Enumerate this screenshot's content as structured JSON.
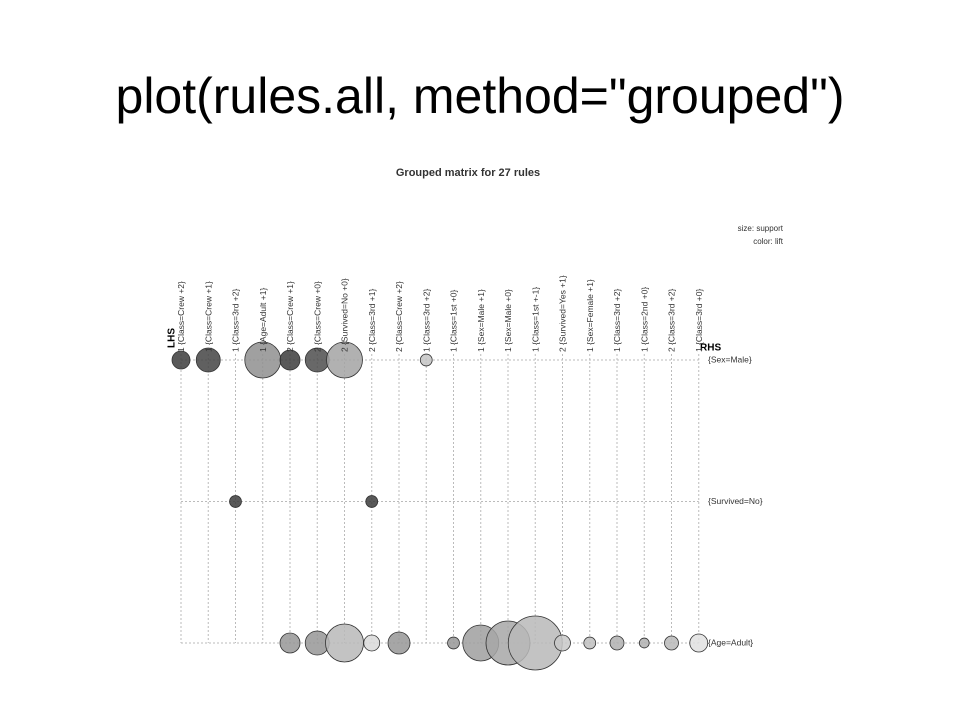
{
  "slide_title": "plot(rules.all, method=\"grouped\")",
  "chart_data": {
    "type": "grouped-matrix",
    "title": "Grouped matrix for 27 rules",
    "size_legend": "size: support",
    "color_legend": "color: lift",
    "lhs_label": "LHS",
    "rhs_label": "RHS",
    "columns": [
      "1 {Class=Crew +2}",
      "1 {Class=Crew +1}",
      "1 {Class=3rd +2}",
      "1 {Age=Adult +1}",
      "2 {Class=Crew +1}",
      "2 {Class=Crew +0}",
      "2 {Survived=No +0}",
      "2 {Class=3rd +1}",
      "2 {Class=Crew +2}",
      "1 {Class=3rd +2}",
      "1 {Class=1st +0}",
      "1 {Sex=Male +1}",
      "1 {Sex=Male +0}",
      "1 {Class=1st +-1}",
      "2 {Survived=Yes +1}",
      "1 {Sex=Female +1}",
      "1 {Class=3rd +2}",
      "1 {Class=2nd +0}",
      "2 {Class=3rd +2}",
      "1 {Class=3rd +0}"
    ],
    "series": [
      {
        "name": "{Sex=Male}",
        "support": [
          0.066,
          0.118,
          null,
          0.264,
          0.082,
          0.118,
          0.264,
          null,
          null,
          0.029,
          null,
          null,
          null,
          null,
          null,
          null,
          null,
          null,
          null,
          null
        ],
        "lift": [
          1.3,
          1.28,
          null,
          1.1,
          1.3,
          1.26,
          1.05,
          null,
          null,
          0.97,
          null,
          null,
          null,
          null,
          null,
          null,
          null,
          null,
          null,
          null
        ]
      },
      {
        "name": "{Survived=No}",
        "support": [
          null,
          null,
          0.029,
          null,
          null,
          null,
          null,
          0.029,
          null,
          null,
          null,
          null,
          null,
          null,
          null,
          null,
          null,
          null,
          null,
          null
        ],
        "lift": [
          null,
          null,
          1.3,
          null,
          null,
          null,
          null,
          1.3,
          null,
          null,
          null,
          null,
          null,
          null,
          null,
          null,
          null,
          null,
          null,
          null
        ]
      },
      {
        "name": "{Age=Adult}",
        "support": [
          null,
          null,
          null,
          null,
          0.082,
          0.118,
          0.295,
          0.052,
          0.099,
          null,
          0.029,
          0.264,
          0.395,
          0.595,
          0.052,
          0.029,
          0.04,
          0.02,
          0.04,
          0.066
        ],
        "lift": [
          null,
          null,
          null,
          null,
          1.08,
          1.08,
          1.0,
          0.92,
          1.08,
          null,
          1.08,
          1.06,
          1.04,
          1.0,
          0.96,
          0.98,
          1.02,
          1.02,
          1.0,
          0.9
        ]
      }
    ]
  }
}
